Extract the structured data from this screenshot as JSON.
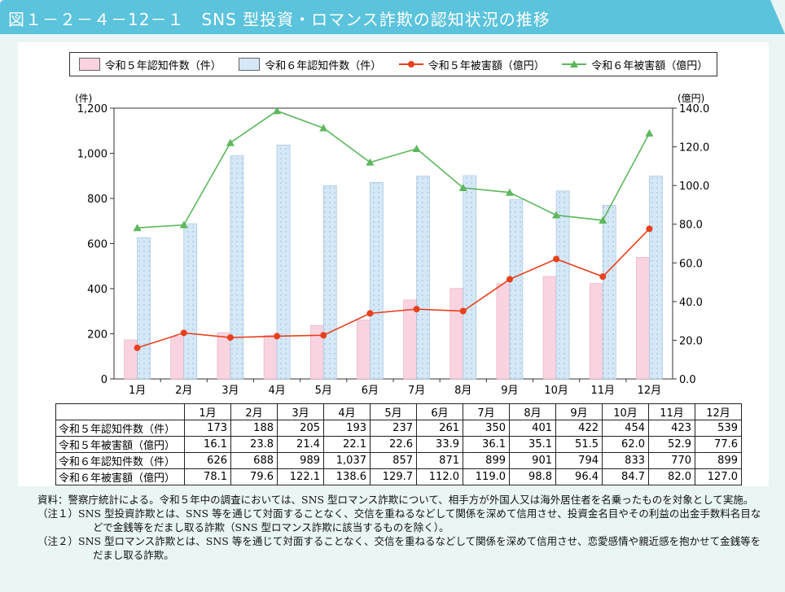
{
  "title": "図１－２－４－12－１　SNS 型投資・ロマンス詐欺の認知状況の推移",
  "colors": {
    "header": "#5bc3dc",
    "r5_bar": "#f9d3e0",
    "r6_bar": "#d5e8f7",
    "r5_line": "#e8401c",
    "r6_line": "#5cb85c"
  },
  "chart_data": {
    "type": "bar+line",
    "categories": [
      "1月",
      "2月",
      "3月",
      "4月",
      "5月",
      "6月",
      "7月",
      "8月",
      "9月",
      "10月",
      "11月",
      "12月"
    ],
    "left_axis": {
      "unit_label": "(件)",
      "ylim": [
        0,
        1200
      ],
      "ticks": [
        "0",
        "200",
        "400",
        "600",
        "800",
        "1,000",
        "1,200"
      ],
      "tick_values": [
        0,
        200,
        400,
        600,
        800,
        1000,
        1200
      ]
    },
    "right_axis": {
      "unit_label": "(億円)",
      "ylim": [
        0,
        140
      ],
      "ticks": [
        "0.0",
        "20.0",
        "40.0",
        "60.0",
        "80.0",
        "100.0",
        "120.0",
        "140.0"
      ],
      "tick_values": [
        0,
        20,
        40,
        60,
        80,
        100,
        120,
        140
      ]
    },
    "legend_placement": "top",
    "series": [
      {
        "name": "令和５年認知件数（件）",
        "type": "bar",
        "axis": "left",
        "values": [
          173,
          188,
          205,
          193,
          237,
          261,
          350,
          401,
          422,
          454,
          423,
          539
        ]
      },
      {
        "name": "令和６年認知件数（件）",
        "type": "bar",
        "axis": "left",
        "values": [
          626,
          688,
          989,
          1037,
          857,
          871,
          899,
          901,
          794,
          833,
          770,
          899
        ]
      },
      {
        "name": "令和５年被害額（億円）",
        "type": "line",
        "axis": "right",
        "marker": "circle",
        "values": [
          16.1,
          23.8,
          21.4,
          22.1,
          22.6,
          33.9,
          36.1,
          35.1,
          51.5,
          62.0,
          52.9,
          77.6
        ]
      },
      {
        "name": "令和６年被害額（億円）",
        "type": "line",
        "axis": "right",
        "marker": "triangle",
        "values": [
          78.1,
          79.6,
          122.1,
          138.6,
          129.7,
          112.0,
          119.0,
          98.8,
          96.4,
          84.7,
          82.0,
          127.0
        ]
      }
    ]
  },
  "table": {
    "header": [
      "",
      "1月",
      "2月",
      "3月",
      "4月",
      "5月",
      "6月",
      "7月",
      "8月",
      "9月",
      "10月",
      "11月",
      "12月"
    ],
    "rows": [
      [
        "令和５年認知件数（件）",
        "173",
        "188",
        "205",
        "193",
        "237",
        "261",
        "350",
        "401",
        "422",
        "454",
        "423",
        "539"
      ],
      [
        "令和５年被害額（億円）",
        "16.1",
        "23.8",
        "21.4",
        "22.1",
        "22.6",
        "33.9",
        "36.1",
        "35.1",
        "51.5",
        "62.0",
        "52.9",
        "77.6"
      ],
      [
        "令和６年認知件数（件）",
        "626",
        "688",
        "989",
        "1,037",
        "857",
        "871",
        "899",
        "901",
        "794",
        "833",
        "770",
        "899"
      ],
      [
        "令和６年被害額（億円）",
        "78.1",
        "79.6",
        "122.1",
        "138.6",
        "129.7",
        "112.0",
        "119.0",
        "98.8",
        "96.4",
        "84.7",
        "82.0",
        "127.0"
      ]
    ]
  },
  "notes": [
    "資料：警察庁統計による。令和５年中の調査においては、SNS 型ロマンス詐欺について、相手方が外国人又は海外居住者を名乗ったものを対象として実施。",
    "（注１）SNS 型投資詐欺とは、SNS 等を通じて対面することなく、交信を重ねるなどして関係を深めて信用させ、投資金名目やその利益の出金手数料名目などで金銭等をだまし取る詐欺（SNS 型ロマンス詐欺に該当するものを除く）。",
    "（注２）SNS 型ロマンス詐欺とは、SNS 等を通じて対面することなく、交信を重ねるなどして関係を深めて信用させ、恋愛感情や親近感を抱かせて金銭等をだまし取る詐欺。"
  ]
}
